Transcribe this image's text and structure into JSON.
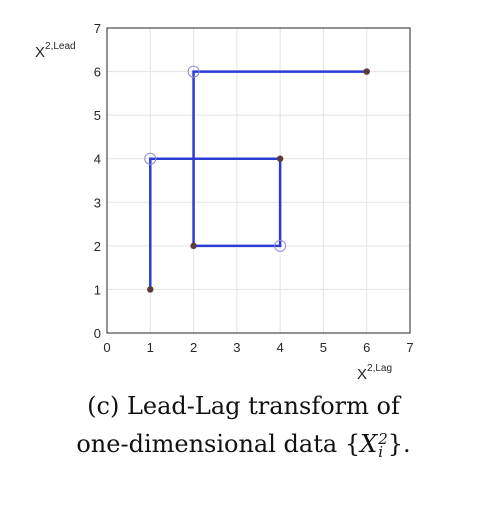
{
  "chart_data": {
    "type": "line",
    "xlabel": "X",
    "xlabel_superscript": "2,Lag",
    "ylabel": "X",
    "ylabel_superscript": "2,Lead",
    "xlim": [
      0,
      7
    ],
    "ylim": [
      0,
      7
    ],
    "xticks": [
      "0",
      "1",
      "2",
      "3",
      "4",
      "5",
      "6",
      "7"
    ],
    "yticks": [
      "0",
      "1",
      "2",
      "3",
      "4",
      "5",
      "6",
      "7"
    ],
    "grid": true,
    "series": [
      {
        "path": [
          [
            1,
            1
          ],
          [
            1,
            4
          ],
          [
            2,
            4
          ],
          [
            2,
            6
          ],
          [
            6,
            6
          ],
          [
            6,
            6
          ],
          [
            2,
            6
          ],
          [
            2,
            2
          ],
          [
            4,
            2
          ],
          [
            4,
            4
          ],
          [
            1,
            4
          ]
        ],
        "line_points": [
          [
            1,
            1
          ],
          [
            1,
            4
          ],
          [
            4,
            4
          ],
          [
            4,
            2
          ],
          [
            2,
            2
          ],
          [
            2,
            6
          ],
          [
            6,
            6
          ]
        ],
        "filled_markers": [
          [
            1,
            1
          ],
          [
            4,
            4
          ],
          [
            2,
            2
          ],
          [
            6,
            6
          ]
        ],
        "open_markers": [
          [
            1,
            4
          ],
          [
            4,
            2
          ],
          [
            2,
            6
          ]
        ],
        "color": "#2b3bd6",
        "marker_color": "#5a3a3a"
      }
    ]
  },
  "caption": {
    "line1": "(c) Lead-Lag transform of",
    "line2_prefix": "one-dimensional data",
    "line2_open": "{",
    "line2_var": "X",
    "line2_sub": "i",
    "line2_sup": "2",
    "line2_close": "}."
  }
}
